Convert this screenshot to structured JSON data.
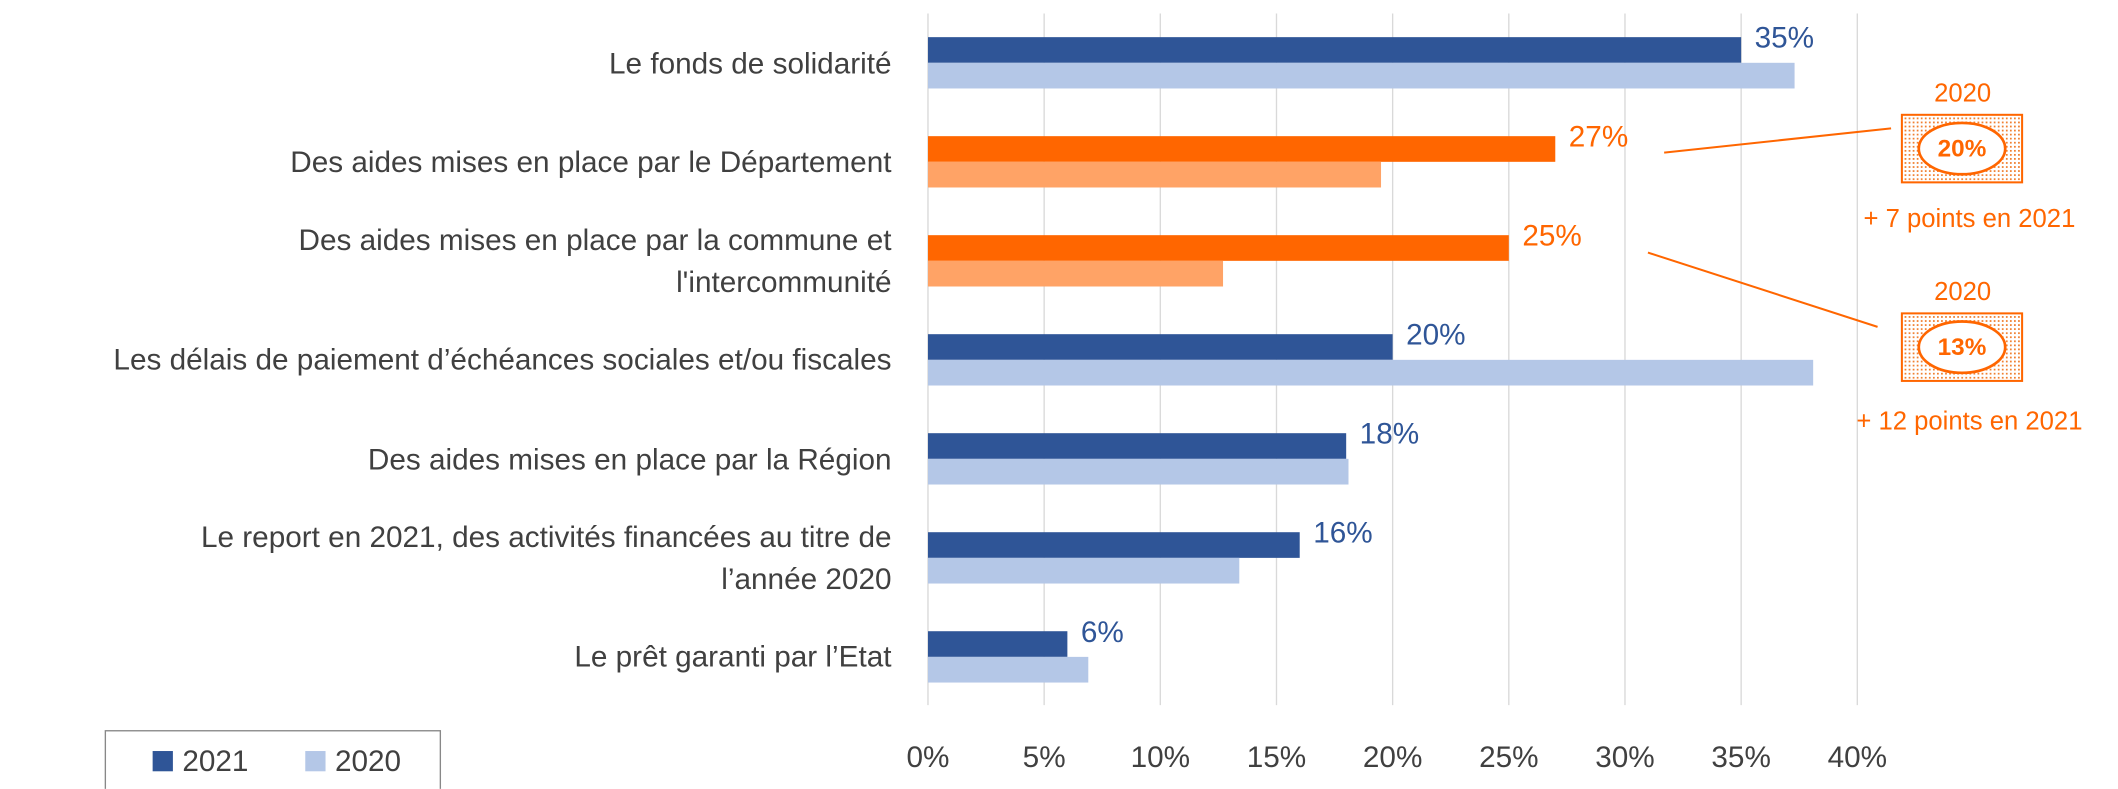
{
  "chart_data": {
    "type": "barh",
    "categories": [
      "Le fonds de solidarité",
      "Des aides mises en place par le Département",
      "Des aides mises en place par la commune et\nl'intercommunité",
      "Les délais de paiement d’échéances sociales et/ou fiscales",
      "Des aides mises en place par la Région",
      "Le report en 2021, des activités financées au titre de\nl’année 2020",
      "Le prêt garanti par l’Etat"
    ],
    "series": [
      {
        "name": "2021",
        "color": "#2f5597",
        "colors": [
          "#2f5597",
          "#ff6600",
          "#ff6600",
          "#2f5597",
          "#2f5597",
          "#2f5597",
          "#2f5597"
        ],
        "values": [
          35,
          27,
          25,
          20,
          18,
          16,
          6
        ],
        "value_labels": [
          "35%",
          "27%",
          "25%",
          "20%",
          "18%",
          "16%",
          "6%"
        ]
      },
      {
        "name": "2020",
        "color": "#b4c7e7",
        "colors": [
          "#b4c7e7",
          "#ffa366",
          "#ffa366",
          "#b4c7e7",
          "#b4c7e7",
          "#b4c7e7",
          "#b4c7e7"
        ],
        "values": [
          37.3,
          19.5,
          12.7,
          38.1,
          18.1,
          13.4,
          6.9
        ]
      }
    ],
    "xlim": [
      0,
      40
    ],
    "xticks": [
      {
        "value": 0,
        "label": "0%"
      },
      {
        "value": 5,
        "label": "5%"
      },
      {
        "value": 10,
        "label": "10%"
      },
      {
        "value": 15,
        "label": "15%"
      },
      {
        "value": 20,
        "label": "20%"
      },
      {
        "value": 25,
        "label": "25%"
      },
      {
        "value": 30,
        "label": "30%"
      },
      {
        "value": 35,
        "label": "35%"
      },
      {
        "value": 40,
        "label": "40%"
      }
    ],
    "grid": true,
    "legend": "bottom-left",
    "annotations": [
      {
        "year": "2020",
        "value": "20%",
        "note": "+ 7 points en 2021"
      },
      {
        "year": "2020",
        "value": "13%",
        "note": "+ 12 points en 2021"
      }
    ]
  }
}
